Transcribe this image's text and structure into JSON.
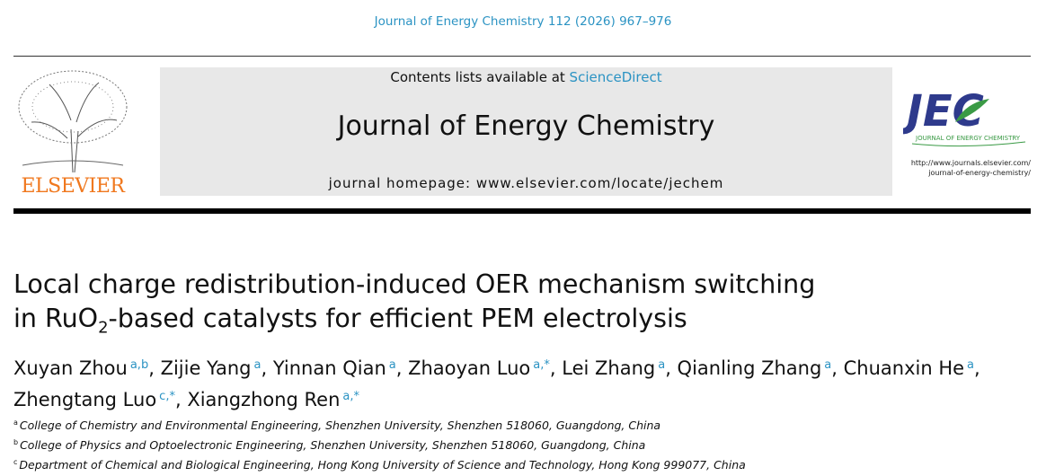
{
  "journal_ref": "Journal of Energy Chemistry 112 (2026) 967–976",
  "header": {
    "contents_prefix": "Contents lists available at ",
    "contents_link": "ScienceDirect",
    "journal_title": "Journal of Energy Chemistry",
    "homepage": "journal homepage: www.elsevier.com/locate/jechem",
    "publisher_logo": "ELSEVIER",
    "jec_logo": "JEC",
    "jec_logo_sub": "JOURNAL OF ENERGY CHEMISTRY",
    "jec_url_1": "http://www.journals.elsevier.com/",
    "jec_url_2": "journal-of-energy-chemistry/"
  },
  "article": {
    "title_1": "Local charge redistribution-induced OER mechanism switching",
    "title_2a": "in RuO",
    "title_2sub": "2",
    "title_2b": "-based catalysts for efficient PEM electrolysis",
    "authors": [
      {
        "name": "Xuyan Zhou",
        "sup": "a,b"
      },
      {
        "name": "Zijie Yang",
        "sup": "a"
      },
      {
        "name": "Yinnan Qian",
        "sup": "a"
      },
      {
        "name": "Zhaoyan Luo",
        "sup": "a,*"
      },
      {
        "name": "Lei Zhang",
        "sup": "a"
      },
      {
        "name": "Qianling Zhang",
        "sup": "a"
      },
      {
        "name": "Chuanxin He",
        "sup": "a"
      },
      {
        "name": "Zhengtang Luo",
        "sup": "c,*"
      },
      {
        "name": "Xiangzhong Ren",
        "sup": "a,*"
      }
    ],
    "affiliations": [
      {
        "mark": "a",
        "text": "College of Chemistry and Environmental Engineering, Shenzhen University, Shenzhen 518060, Guangdong, China"
      },
      {
        "mark": "b",
        "text": "College of Physics and Optoelectronic Engineering, Shenzhen University, Shenzhen 518060, Guangdong, China"
      },
      {
        "mark": "c",
        "text": "Department of Chemical and Biological Engineering, Hong Kong University of Science and Technology, Hong Kong 999077, China"
      }
    ]
  },
  "colors": {
    "link": "#2b93c3",
    "elsevier": "#f0781e",
    "jec_blue": "#2e3a8c",
    "jec_green": "#3a9a45"
  }
}
